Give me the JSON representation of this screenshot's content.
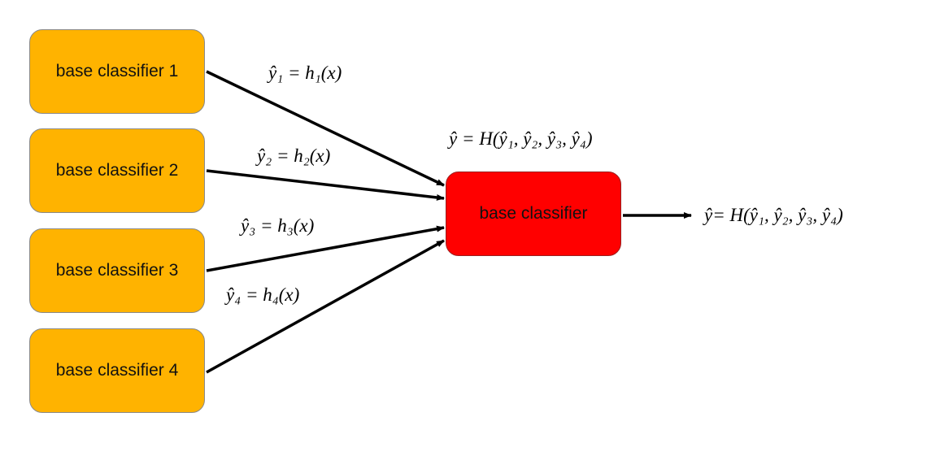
{
  "diagram": {
    "colors": {
      "base_fill": "#FFB300",
      "meta_fill": "#FF0000",
      "arrow": "#000000"
    },
    "base_classifiers": [
      {
        "label": "base classifier 1"
      },
      {
        "label": "base classifier 2"
      },
      {
        "label": "base classifier 3"
      },
      {
        "label": "base classifier 4"
      }
    ],
    "combiner": {
      "label": "base classifier"
    },
    "equations": {
      "h1": "ŷ₁ = h₁(x)",
      "h2": "ŷ₂ = h₂(x)",
      "h3": "ŷ₃ = h₃(x)",
      "h4": "ŷ₄  = h₄(x)",
      "combined": "ŷ = H(ŷ₁, ŷ₂, ŷ₃, ŷ₄)",
      "output": "ŷ= H(ŷ₁, ŷ₂, ŷ₃, ŷ₄)"
    }
  }
}
